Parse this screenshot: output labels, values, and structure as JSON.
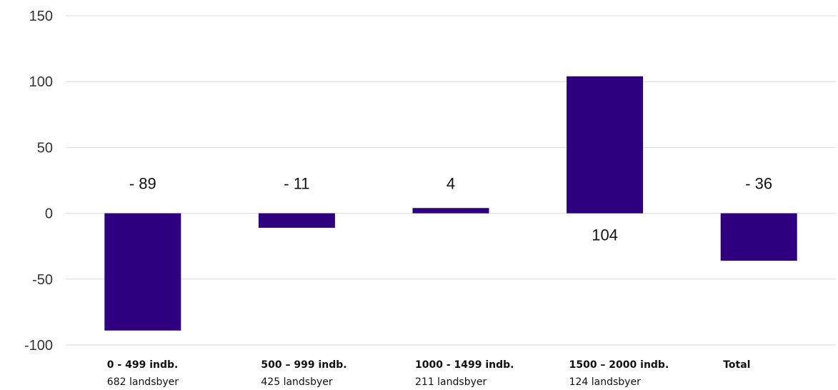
{
  "chart_data": {
    "type": "bar",
    "categories": [
      {
        "label": "0 - 499 indb.",
        "sublabel": "682 landsbyer"
      },
      {
        "label": "500 – 999 indb.",
        "sublabel": "425 landsbyer"
      },
      {
        "label": "1000 - 1499 indb.",
        "sublabel": "211 landsbyer"
      },
      {
        "label": "1500 – 2000 indb.",
        "sublabel": "124 landsbyer"
      },
      {
        "label": "Total",
        "sublabel": ""
      }
    ],
    "values": [
      -89,
      -11,
      4,
      104,
      -36
    ],
    "data_labels": [
      "- 89",
      "- 11",
      "4",
      "104",
      "- 36"
    ],
    "ylim": [
      -100,
      150
    ],
    "yticks": [
      150,
      100,
      50,
      0,
      -50,
      -100
    ],
    "grid": true,
    "bar_color": "#2E0080",
    "title": "",
    "xlabel": "",
    "ylabel": ""
  }
}
